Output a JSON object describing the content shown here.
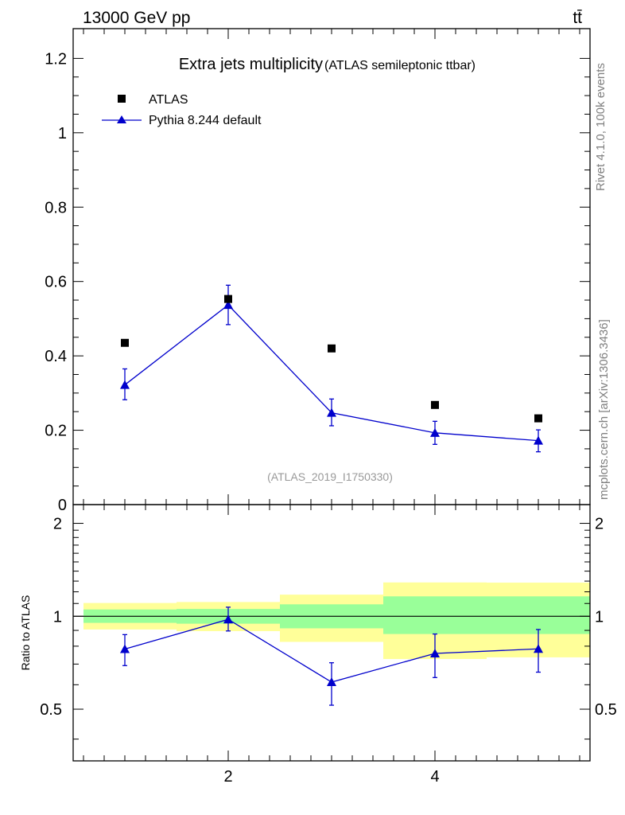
{
  "header": {
    "left": "13000 GeV pp",
    "right": "tt̄"
  },
  "side_labels": {
    "rivet": "Rivet 4.1.0,  100k events",
    "mcplots": "mcplots.cern.ch [arXiv:1306.3436]"
  },
  "colors": {
    "mc": "#0000cc",
    "data": "#000000",
    "band_inner": "#99ff99",
    "band_outer": "#ffff99",
    "watermark": "#999999"
  },
  "chart_data": [
    {
      "type": "scatter",
      "title": "Extra jets multiplicity",
      "subtitle": "(ATLAS semileptonic ttbar)",
      "watermark": "(ATLAS_2019_I1750330)",
      "xlabel": "",
      "ylabel": "",
      "xlim": [
        0.5,
        5.5
      ],
      "ylim": [
        0,
        1.28
      ],
      "yticks": [
        0,
        0.2,
        0.4,
        0.6,
        0.8,
        1,
        1.2
      ],
      "ytick_labels": [
        "0",
        "0.2",
        "0.4",
        "0.6",
        "0.8",
        "1",
        "1.2"
      ],
      "legend": {
        "placement": "top-left",
        "entries": [
          "ATLAS",
          "Pythia 8.244 default"
        ]
      },
      "series": [
        {
          "name": "ATLAS",
          "marker": "square",
          "x": [
            1,
            2,
            3,
            4,
            5
          ],
          "y": [
            0.435,
            0.553,
            0.42,
            0.268,
            0.232
          ]
        },
        {
          "name": "Pythia 8.244 default",
          "marker": "triangle",
          "line": true,
          "x": [
            1,
            2,
            3,
            4,
            5
          ],
          "y": [
            0.322,
            0.537,
            0.247,
            0.193,
            0.172
          ],
          "err_up": [
            0.043,
            0.053,
            0.037,
            0.031,
            0.029
          ],
          "err_down": [
            0.04,
            0.053,
            0.035,
            0.031,
            0.03
          ]
        }
      ]
    },
    {
      "type": "scatter",
      "ylabel": "Ratio to ATLAS",
      "xlim": [
        0.5,
        5.5
      ],
      "ylim": [
        0.34,
        2.3
      ],
      "yscale": "log",
      "yticks": [
        0.5,
        1,
        2
      ],
      "ytick_labels": [
        "0.5",
        "1",
        "2"
      ],
      "xticks": [
        2,
        4
      ],
      "xtick_labels": [
        "2",
        "4"
      ],
      "reference_line": 1,
      "bands": [
        {
          "x_low": 0.6,
          "x_high": 1.5,
          "inner": [
            0.952,
            1.052
          ],
          "outer": [
            0.906,
            1.104
          ]
        },
        {
          "x_low": 1.5,
          "x_high": 2.5,
          "inner": [
            0.946,
            1.056
          ],
          "outer": [
            0.895,
            1.112
          ]
        },
        {
          "x_low": 2.5,
          "x_high": 3.5,
          "inner": [
            0.914,
            1.093
          ],
          "outer": [
            0.826,
            1.175
          ]
        },
        {
          "x_low": 3.5,
          "x_high": 4.5,
          "inner": [
            0.876,
            1.16
          ],
          "outer": [
            0.727,
            1.287
          ]
        },
        {
          "x_low": 4.5,
          "x_high": 5.5,
          "inner": [
            0.876,
            1.16
          ],
          "outer": [
            0.736,
            1.285
          ]
        }
      ],
      "series": [
        {
          "name": "Pythia 8.244 default / ATLAS",
          "marker": "triangle",
          "line": true,
          "x": [
            1,
            2,
            3,
            4,
            5
          ],
          "y": [
            0.783,
            0.977,
            0.612,
            0.758,
            0.784
          ],
          "err_up": [
            0.089,
            0.093,
            0.095,
            0.118,
            0.122
          ],
          "err_down": [
            0.091,
            0.081,
            0.097,
            0.125,
            0.125
          ]
        }
      ]
    }
  ]
}
